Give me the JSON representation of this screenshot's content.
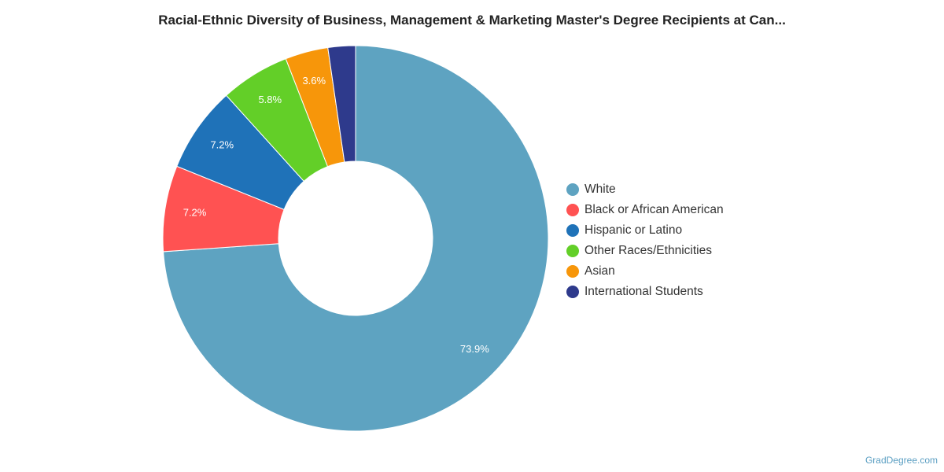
{
  "chart_data": {
    "type": "pie",
    "donut": true,
    "title": "Racial-Ethnic Diversity of Business, Management & Marketing Master's Degree Recipients at Can...",
    "slices": [
      {
        "name": "White",
        "value": 73.9,
        "label": "73.9%",
        "color": "#5ea3c1"
      },
      {
        "name": "Black or African American",
        "value": 7.2,
        "label": "7.2%",
        "color": "#ff5252"
      },
      {
        "name": "Hispanic or Latino",
        "value": 7.2,
        "label": "7.2%",
        "color": "#1f72b8"
      },
      {
        "name": "Other Races/Ethnicities",
        "value": 5.8,
        "label": "5.8%",
        "color": "#63cf28"
      },
      {
        "name": "Asian",
        "value": 3.6,
        "label": "3.6%",
        "color": "#f7960a"
      },
      {
        "name": "International Students",
        "value": 2.3,
        "label": "",
        "color": "#2e3a8c"
      }
    ],
    "legend_position": "right"
  },
  "credit": "GradDegree.com"
}
